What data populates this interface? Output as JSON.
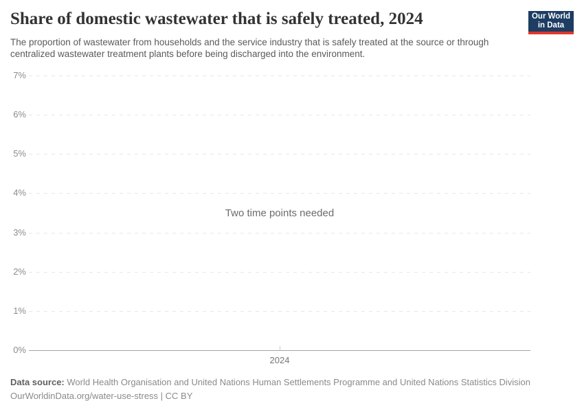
{
  "header": {
    "title": "Share of domestic wastewater that is safely treated, 2024",
    "subtitle": "The proportion of wastewater from households and the service industry that is safely treated at the source or through centralized wastewater treatment plants before being discharged into the environment.",
    "logo": {
      "line1": "Our World",
      "line2": "in Data"
    }
  },
  "chart_data": {
    "type": "line",
    "title": "Share of domestic wastewater that is safely treated, 2024",
    "series": [],
    "values": [],
    "message": "Two time points needed",
    "x": {
      "ticks": [
        "2024"
      ]
    },
    "y": {
      "ticks": [
        "0%",
        "1%",
        "2%",
        "3%",
        "4%",
        "5%",
        "6%",
        "7%"
      ],
      "min": 0,
      "max": 7,
      "unit": "%",
      "ylim": [
        0,
        7
      ]
    },
    "grid": true,
    "legend": "none"
  },
  "footer": {
    "source_label": "Data source:",
    "source_text": "World Health Organisation and United Nations Human Settlements Programme and United Nations Statistics Division",
    "attribution": "OurWorldinData.org/water-use-stress | CC BY"
  },
  "colors": {
    "navy": "#1d3d63",
    "red": "#e0362c",
    "grid": "#e7e7e7",
    "axis": "#a3a3a3",
    "title_text": "#333333",
    "subtitle_text": "#5a5a5a",
    "muted_text": "#8c8c8c"
  }
}
